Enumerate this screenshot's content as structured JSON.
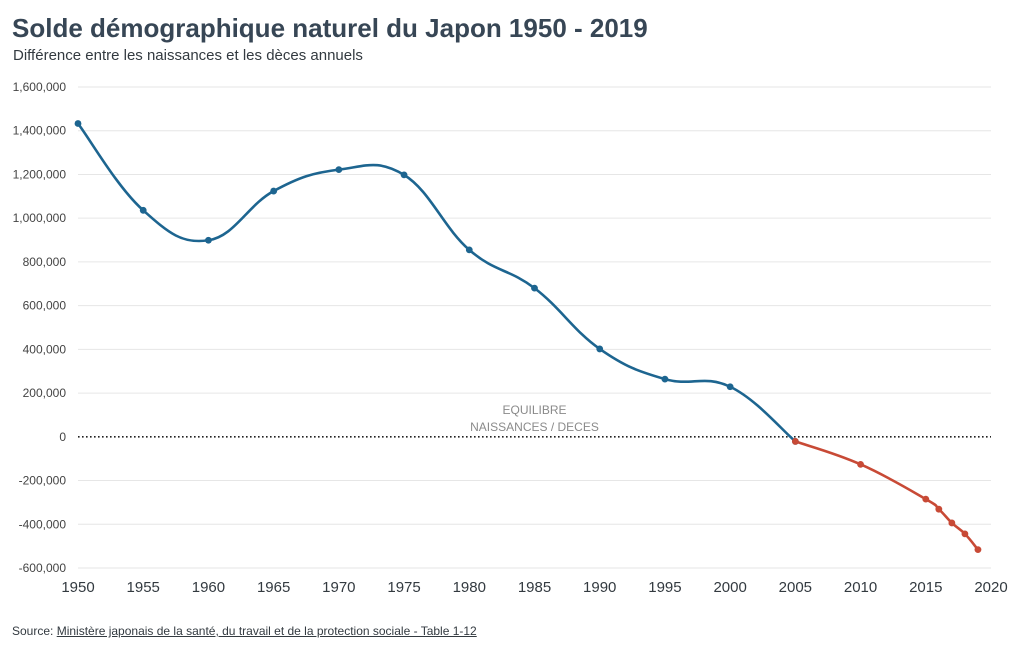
{
  "header": {
    "title": "Solde démographique naturel du Japon 1950 - 2019",
    "subtitle": "Différence entre les naissances et les dèces annuels"
  },
  "footer": {
    "source_prefix": "Source:",
    "source_link": "Ministère japonais de la santé, du travail et de la protection sociale - Table 1-12"
  },
  "colors": {
    "positive_series": "#1d6590",
    "negative_series": "#c84a36",
    "grid": "#e6e6e6",
    "zero_line": "#222222",
    "annotation": "#8a8a8a",
    "axis_text": "#444444"
  },
  "chart_data": {
    "type": "line",
    "title": "Solde démographique naturel du Japon 1950 - 2019",
    "subtitle": "Différence entre les naissances et les dèces annuels",
    "xlabel": "",
    "ylabel": "",
    "xlim": [
      1950,
      2020
    ],
    "ylim": [
      -600000,
      1600000
    ],
    "x_ticks": [
      1950,
      1955,
      1960,
      1965,
      1970,
      1975,
      1980,
      1985,
      1990,
      1995,
      2000,
      2005,
      2010,
      2015,
      2020
    ],
    "y_ticks": [
      -600000,
      -400000,
      -200000,
      0,
      200000,
      400000,
      600000,
      800000,
      1000000,
      1200000,
      1400000,
      1600000
    ],
    "y_tick_labels": [
      "-600,000",
      "-400,000",
      "-200,000",
      "0",
      "200,000",
      "400,000",
      "600,000",
      "800,000",
      "1,000,000",
      "1,200,000",
      "1,400,000",
      "1,600,000"
    ],
    "grid": true,
    "legend": "none",
    "series": [
      {
        "x": [
          1950,
          1955,
          1960,
          1965,
          1970,
          1975,
          1980,
          1985,
          1990,
          1995,
          2000,
          2005
        ],
        "values": [
          1433000,
          1036000,
          899000,
          1124000,
          1222000,
          1198000,
          855000,
          680000,
          402000,
          264000,
          229000,
          -21000
        ],
        "color": "#1d6590"
      },
      {
        "x": [
          2005,
          2010,
          2015,
          2016,
          2017,
          2018,
          2019
        ],
        "values": [
          -21000,
          -126000,
          -285000,
          -331000,
          -394000,
          -444000,
          -516000
        ],
        "color": "#c84a36"
      }
    ],
    "annotations": [
      {
        "lines": [
          "EQUILIBRE",
          "NAISSANCES / DECES"
        ],
        "x": 1985,
        "y": 0
      }
    ],
    "reference_line": {
      "y": 0,
      "style": "dotted"
    }
  }
}
